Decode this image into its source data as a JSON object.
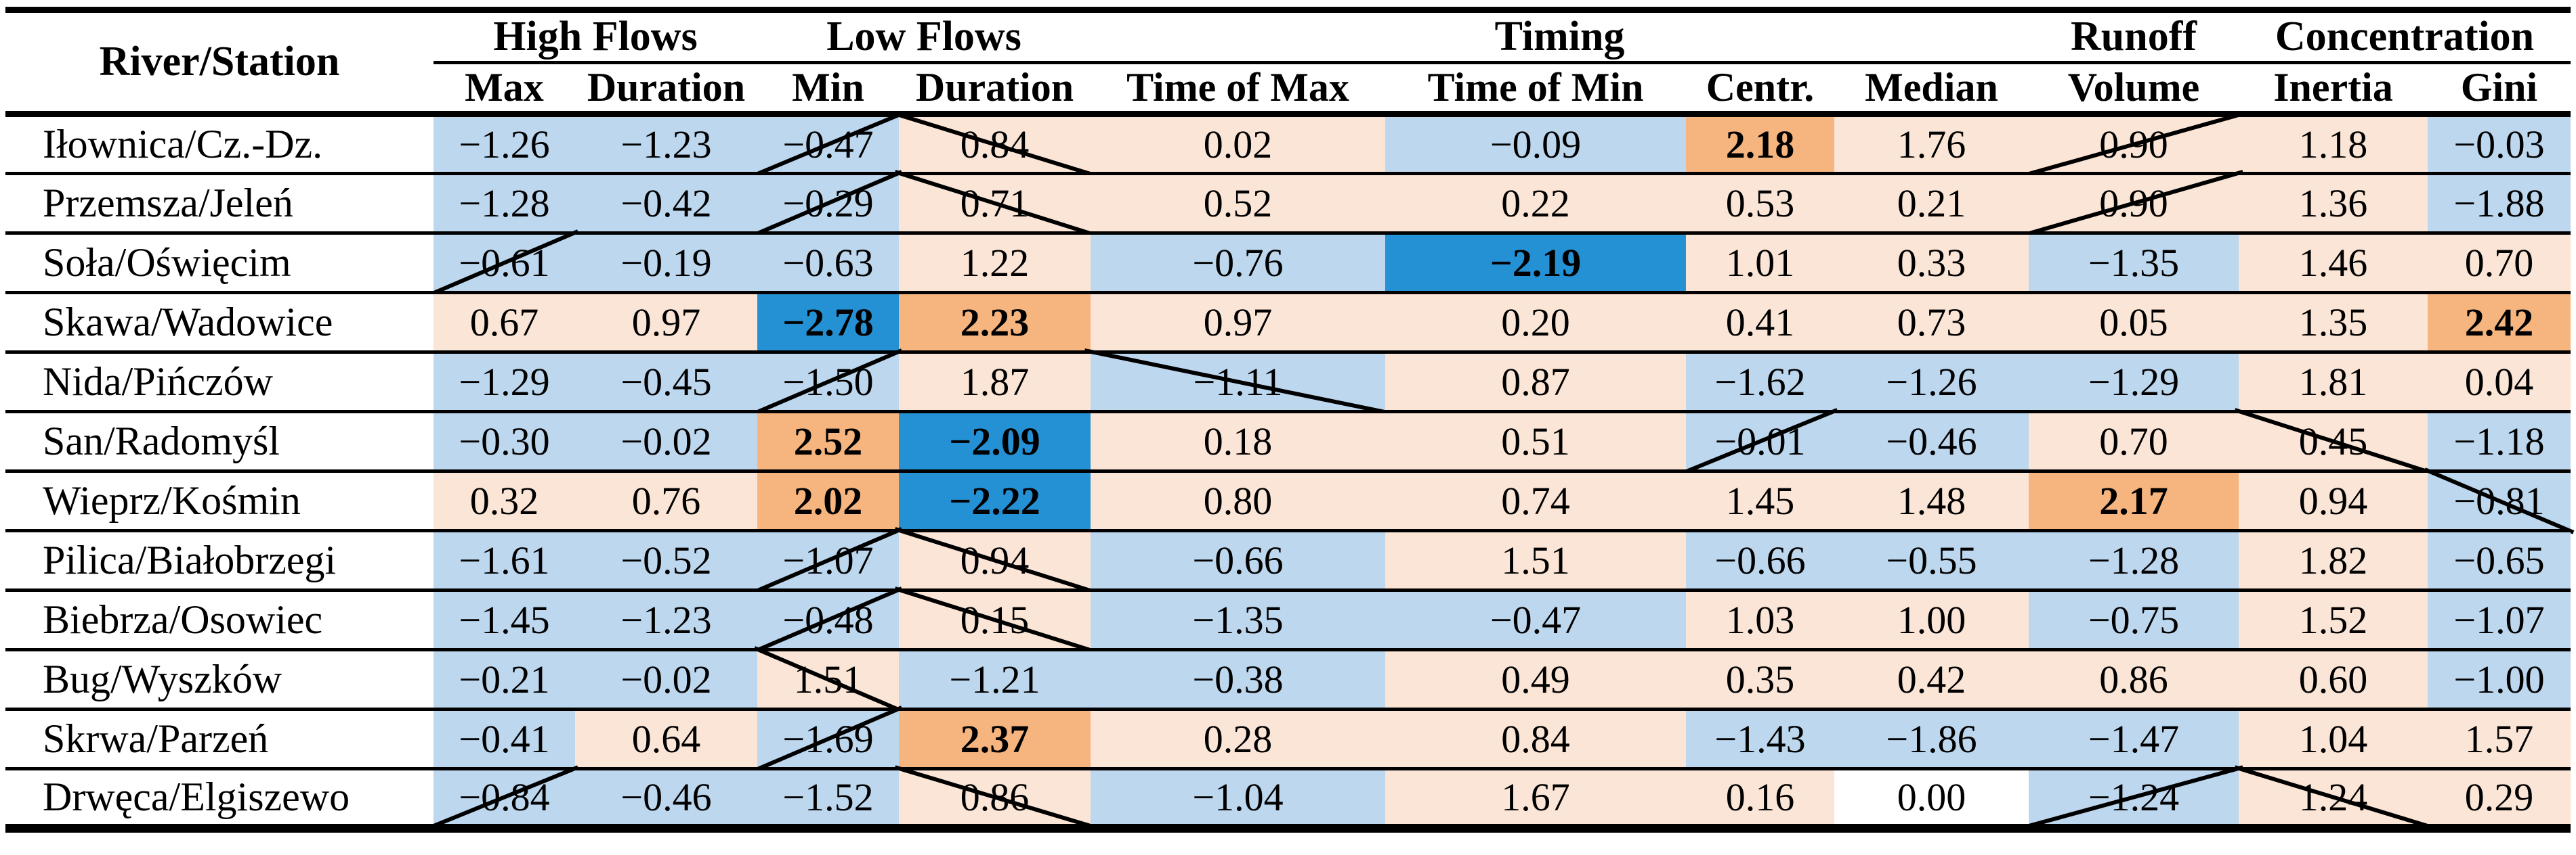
{
  "table_name": "river-flow-metrics-table",
  "header": {
    "row_col_label": "River/Station",
    "groups": [
      {
        "label": "High Flows",
        "span": 2
      },
      {
        "label": "Low Flows",
        "span": 2
      },
      {
        "label": "Timing",
        "span": 4
      },
      {
        "label": "Runoff",
        "span": 1
      },
      {
        "label": "Concentration",
        "span": 2
      }
    ],
    "columns": [
      "Max",
      "Duration",
      "Min",
      "Duration",
      "Time of Max",
      "Time of Min",
      "Centr.",
      "Median",
      "Volume",
      "Inertia",
      "Gini"
    ]
  },
  "colors": {
    "positive_weak": "#FBE5D6",
    "negative_weak": "#BDD7EE",
    "positive_strong": "#F6B47E",
    "negative_strong": "#2491D5",
    "zero": "#FFFFFF",
    "strike": "#000000",
    "rule": "#000000"
  },
  "rows": [
    {
      "station": "Iłownica/Cz.-Dz.",
      "values": [
        -1.26,
        -1.23,
        -0.47,
        0.84,
        0.02,
        -0.09,
        2.18,
        1.76,
        0.9,
        1.18,
        -0.03
      ],
      "strikes": {
        "2": "/",
        "3": "\\",
        "8": "/"
      }
    },
    {
      "station": "Przemsza/Jeleń",
      "values": [
        -1.28,
        -0.42,
        -0.29,
        0.71,
        0.52,
        0.22,
        0.53,
        0.21,
        0.9,
        1.36,
        -1.88
      ],
      "strikes": {
        "2": "/",
        "3": "\\",
        "8": "/"
      }
    },
    {
      "station": "Soła/Oświęcim",
      "values": [
        -0.61,
        -0.19,
        -0.63,
        1.22,
        -0.76,
        -2.19,
        1.01,
        0.33,
        -1.35,
        1.46,
        0.7
      ],
      "strikes": {
        "0": "/"
      }
    },
    {
      "station": "Skawa/Wadowice",
      "values": [
        0.67,
        0.97,
        -2.78,
        2.23,
        0.97,
        0.2,
        0.41,
        0.73,
        0.05,
        1.35,
        2.42
      ],
      "strikes": {}
    },
    {
      "station": "Nida/Pińczów",
      "values": [
        -1.29,
        -0.45,
        -1.5,
        1.87,
        -1.11,
        0.87,
        -1.62,
        -1.26,
        -1.29,
        1.81,
        0.04
      ],
      "strikes": {
        "2": "/",
        "4": "\\"
      }
    },
    {
      "station": "San/Radomyśl",
      "values": [
        -0.3,
        -0.02,
        2.52,
        -2.09,
        0.18,
        0.51,
        -0.01,
        -0.46,
        0.7,
        0.45,
        -1.18
      ],
      "strikes": {
        "6": "/",
        "9": "\\"
      }
    },
    {
      "station": "Wieprz/Kośmin",
      "values": [
        0.32,
        0.76,
        2.02,
        -2.22,
        0.8,
        0.74,
        1.45,
        1.48,
        2.17,
        0.94,
        -0.81
      ],
      "strikes": {
        "10": "\\"
      }
    },
    {
      "station": "Pilica/Białobrzegi",
      "values": [
        -1.61,
        -0.52,
        -1.07,
        0.94,
        -0.66,
        1.51,
        -0.66,
        -0.55,
        -1.28,
        1.82,
        -0.65
      ],
      "strikes": {
        "2": "/",
        "3": "\\"
      }
    },
    {
      "station": "Biebrza/Osowiec",
      "values": [
        -1.45,
        -1.23,
        -0.48,
        0.15,
        -1.35,
        -0.47,
        1.03,
        1.0,
        -0.75,
        1.52,
        -1.07
      ],
      "strikes": {
        "2": "/",
        "3": "\\"
      }
    },
    {
      "station": "Bug/Wyszków",
      "values": [
        -0.21,
        -0.02,
        1.51,
        -1.21,
        -0.38,
        0.49,
        0.35,
        0.42,
        0.86,
        0.6,
        -1.0
      ],
      "strikes": {
        "2": "\\"
      }
    },
    {
      "station": "Skrwa/Parzeń",
      "values": [
        -0.41,
        0.64,
        -1.69,
        2.37,
        0.28,
        0.84,
        -1.43,
        -1.86,
        -1.47,
        1.04,
        1.57
      ],
      "strikes": {
        "2": "/"
      }
    },
    {
      "station": "Drwęca/Elgiszewo",
      "values": [
        -0.84,
        -0.46,
        -1.52,
        0.86,
        -1.04,
        1.67,
        0.16,
        0.0,
        -1.24,
        1.24,
        0.29
      ],
      "strikes": {
        "0": "/",
        "3": "\\",
        "8": "/",
        "9": "\\"
      }
    }
  ]
}
